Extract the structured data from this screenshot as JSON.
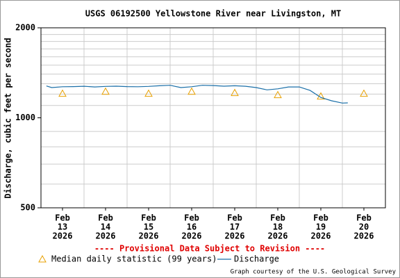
{
  "chart_data": {
    "type": "line",
    "title": "USGS 06192500 Yellowstone River near Livingston, MT",
    "y_label": "Discharge, cubic feet per second",
    "log_y": true,
    "ylim": [
      500,
      2000
    ],
    "yticks": [
      500,
      1000,
      2000
    ],
    "y_minor_grid": [
      600,
      700,
      800,
      900,
      1100,
      1200,
      1300,
      1400,
      1500,
      1600,
      1700,
      1800,
      1900
    ],
    "xlim": [
      "2026-02-13T00:00",
      "2026-02-21T00:00"
    ],
    "x_grid": [
      "2026-02-14T00:00",
      "2026-02-15T00:00",
      "2026-02-16T00:00",
      "2026-02-17T00:00",
      "2026-02-18T00:00",
      "2026-02-19T00:00",
      "2026-02-20T00:00"
    ],
    "xticks": [
      {
        "value": "2026-02-13T12:00",
        "label": [
          "Feb",
          "13",
          "2026"
        ]
      },
      {
        "value": "2026-02-14T12:00",
        "label": [
          "Feb",
          "14",
          "2026"
        ]
      },
      {
        "value": "2026-02-15T12:00",
        "label": [
          "Feb",
          "15",
          "2026"
        ]
      },
      {
        "value": "2026-02-16T12:00",
        "label": [
          "Feb",
          "16",
          "2026"
        ]
      },
      {
        "value": "2026-02-17T12:00",
        "label": [
          "Feb",
          "17",
          "2026"
        ]
      },
      {
        "value": "2026-02-18T12:00",
        "label": [
          "Feb",
          "18",
          "2026"
        ]
      },
      {
        "value": "2026-02-19T12:00",
        "label": [
          "Feb",
          "19",
          "2026"
        ]
      },
      {
        "value": "2026-02-20T12:00",
        "label": [
          "Feb",
          "20",
          "2026"
        ]
      }
    ],
    "series": [
      {
        "name": "Median daily statistic (99 years)",
        "kind": "marker",
        "color": "#e8a000",
        "x": [
          "2026-02-13T12:00",
          "2026-02-14T12:00",
          "2026-02-15T12:00",
          "2026-02-16T12:00",
          "2026-02-17T12:00",
          "2026-02-18T12:00",
          "2026-02-19T12:00",
          "2026-02-20T12:00"
        ],
        "values": [
          1205,
          1224,
          1205,
          1224,
          1212,
          1192,
          1180,
          1205
        ]
      },
      {
        "name": "Discharge",
        "kind": "line",
        "color": "#1a6fa8",
        "x": [
          "2026-02-13T03:00",
          "2026-02-13T06:00",
          "2026-02-13T12:00",
          "2026-02-13T18:00",
          "2026-02-14T00:00",
          "2026-02-14T06:00",
          "2026-02-14T12:00",
          "2026-02-14T18:00",
          "2026-02-15T00:00",
          "2026-02-15T06:00",
          "2026-02-15T12:00",
          "2026-02-15T18:00",
          "2026-02-16T00:00",
          "2026-02-16T06:00",
          "2026-02-16T12:00",
          "2026-02-16T18:00",
          "2026-02-17T00:00",
          "2026-02-17T06:00",
          "2026-02-17T12:00",
          "2026-02-17T18:00",
          "2026-02-18T00:00",
          "2026-02-18T06:00",
          "2026-02-18T12:00",
          "2026-02-18T18:00",
          "2026-02-19T00:00",
          "2026-02-19T06:00",
          "2026-02-19T12:00",
          "2026-02-19T18:00",
          "2026-02-20T00:00",
          "2026-02-20T03:00"
        ],
        "values": [
          1278,
          1262,
          1270,
          1272,
          1275,
          1268,
          1274,
          1276,
          1272,
          1270,
          1274,
          1280,
          1285,
          1262,
          1270,
          1285,
          1282,
          1276,
          1280,
          1275,
          1262,
          1240,
          1250,
          1268,
          1268,
          1235,
          1170,
          1140,
          1120,
          1122
        ]
      }
    ],
    "note": "---- Provisional Data Subject to Revision ----",
    "credit": "Graph courtesy of the U.S. Geological Survey"
  }
}
